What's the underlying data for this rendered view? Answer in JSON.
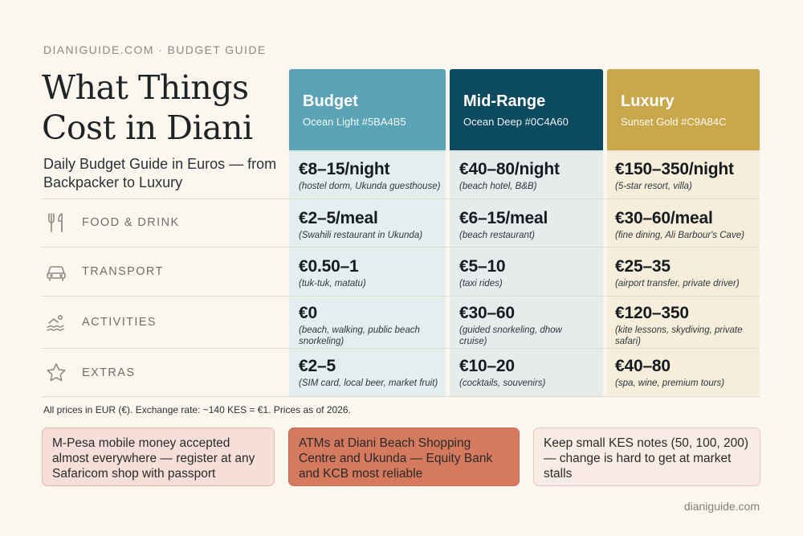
{
  "brand": "DIANIGUIDE.COM · BUDGET GUIDE",
  "title": "What Things Cost in Diani",
  "subtitle": "Daily Budget Guide in Euros — from Backpacker to Luxury",
  "columns": [
    {
      "name": "Budget",
      "hex": "Ocean Light #5BA4B5",
      "color": "#5BA4B5",
      "tint": "#E5EEEE"
    },
    {
      "name": "Mid-Range",
      "hex": "Ocean Deep #0C4A60",
      "color": "#0C4A60",
      "tint": "#E6ECEC"
    },
    {
      "name": "Luxury",
      "hex": "Sunset Gold #C9A84C",
      "color": "#C9A84C",
      "tint": "#F6EEDB"
    }
  ],
  "rows": [
    {
      "label": "",
      "icon": "",
      "cells": [
        {
          "price": "€8–15/night",
          "desc": "(hostel dorm, Ukunda guesthouse)"
        },
        {
          "price": "€40–80/night",
          "desc": "(beach hotel, B&B)"
        },
        {
          "price": "€150–350/night",
          "desc": "(5-star resort, villa)"
        }
      ]
    },
    {
      "label": "FOOD & DRINK",
      "icon": "fork-knife-icon",
      "cells": [
        {
          "price": "€2–5/meal",
          "desc": "(Swahili restaurant in Ukunda)"
        },
        {
          "price": "€6–15/meal",
          "desc": "(beach restaurant)"
        },
        {
          "price": "€30–60/meal",
          "desc": "(fine dining, Ali Barbour's Cave)"
        }
      ]
    },
    {
      "label": "TRANSPORT",
      "icon": "car-icon",
      "cells": [
        {
          "price": "€0.50–1",
          "desc": "(tuk-tuk, matatu)"
        },
        {
          "price": "€5–10",
          "desc": "(taxi rides)"
        },
        {
          "price": "€25–35",
          "desc": "(airport transfer, private driver)"
        }
      ]
    },
    {
      "label": "ACTIVITIES",
      "icon": "swimmer-icon",
      "cells": [
        {
          "price": "€0",
          "desc": "(beach, walking, public beach snorkeling)"
        },
        {
          "price": "€30–60",
          "desc": "(guided snorkeling, dhow cruise)"
        },
        {
          "price": "€120–350",
          "desc": "(kite lessons, skydiving, private safari)"
        }
      ]
    },
    {
      "label": "EXTRAS",
      "icon": "star-icon",
      "cells": [
        {
          "price": "€2–5",
          "desc": "(SIM card, local beer, market fruit)"
        },
        {
          "price": "€10–20",
          "desc": "(cocktails, souvenirs)"
        },
        {
          "price": "€40–80",
          "desc": "(spa, wine, premium tours)"
        }
      ]
    }
  ],
  "footnote": "All prices in EUR (€). Exchange rate: ~140 KES = €1. Prices as of 2026.",
  "tips": [
    {
      "text": "M-Pesa mobile money accepted almost everywhere — register at any Safaricom shop with passport",
      "bg": "#F6DFD8",
      "border": "#E3B8AC"
    },
    {
      "text": "ATMs at Diani Beach Shopping Centre and Ukunda — Equity Bank and KCB most reliable",
      "bg": "#D57A5E",
      "border": "#C66C52"
    },
    {
      "text": "Keep small KES notes (50, 100, 200) — change is hard to get at market stalls",
      "bg": "#F9ECE4",
      "border": "#E6C7BA"
    }
  ],
  "site": "dianiguide.com"
}
